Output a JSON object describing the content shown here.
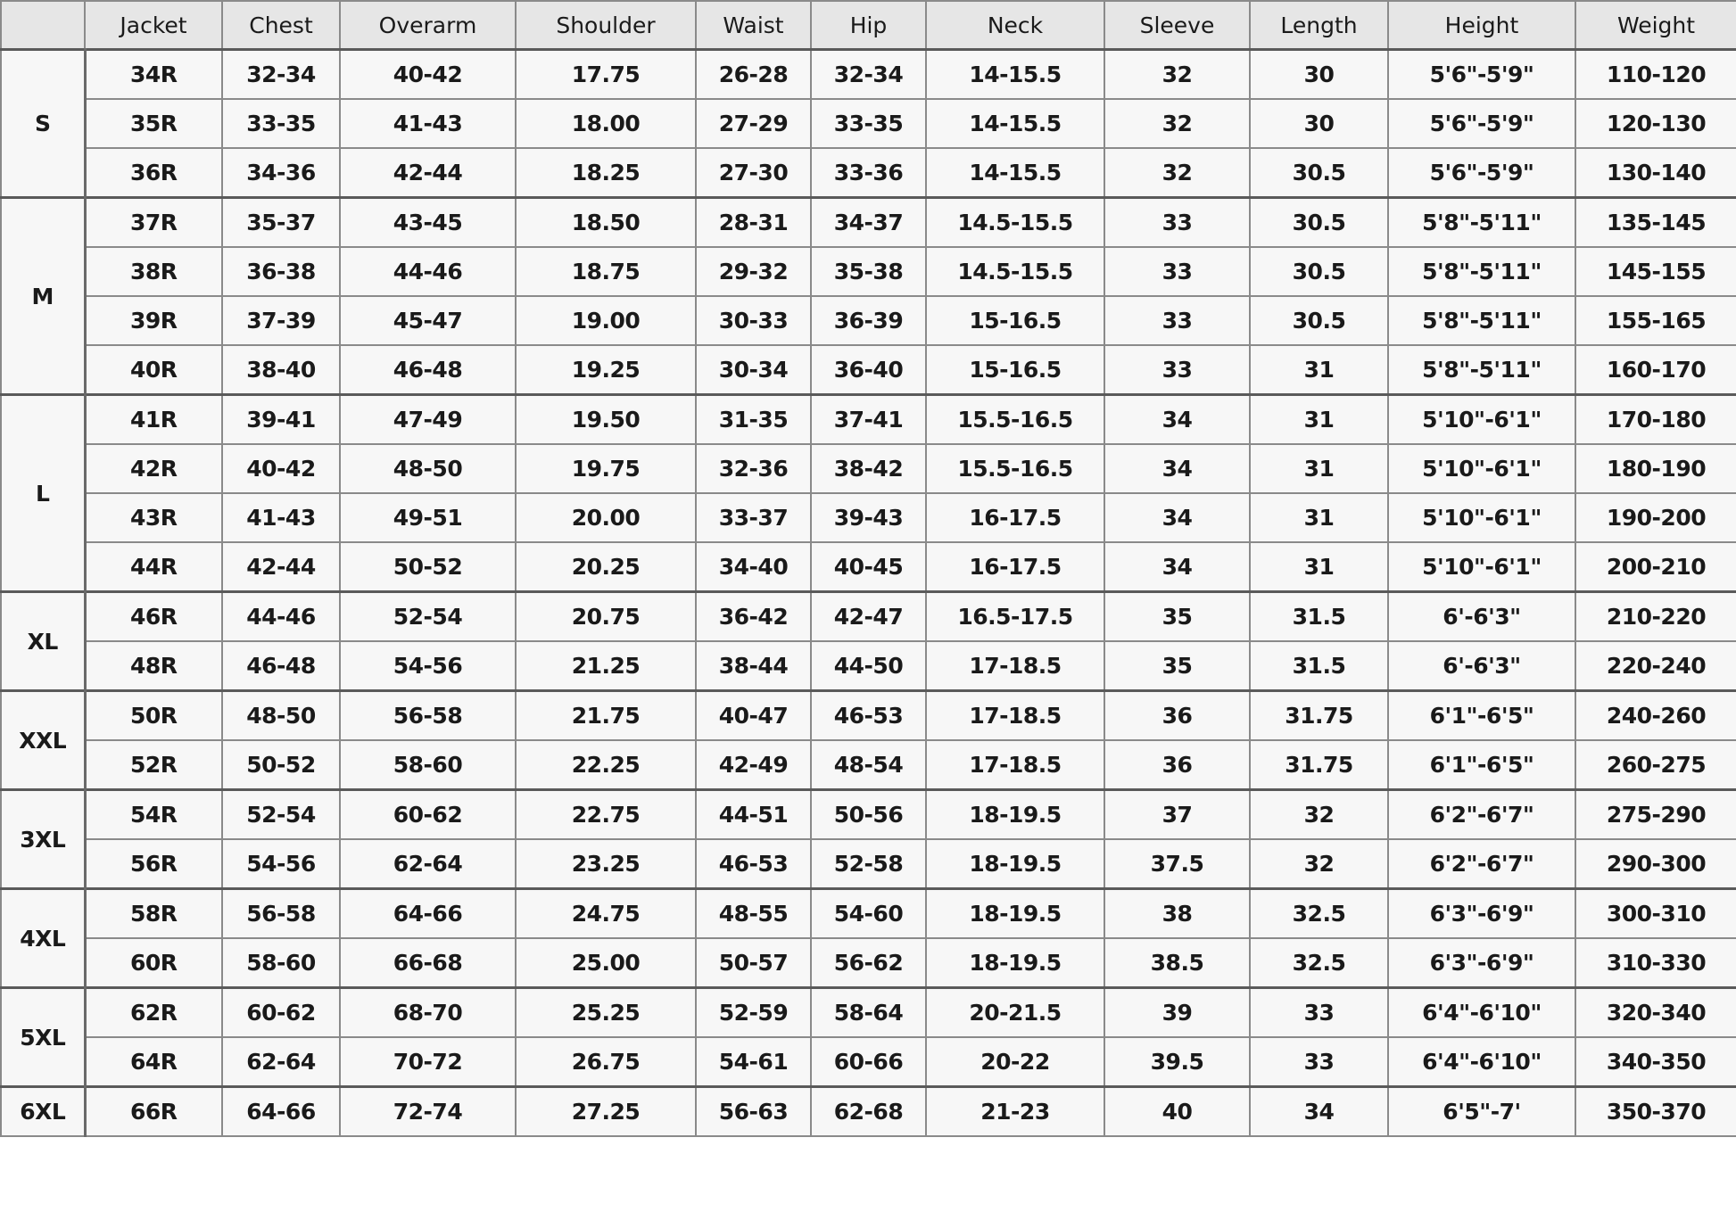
{
  "table": {
    "header": [
      "Jacket",
      "Chest",
      "Overarm",
      "Shoulder",
      "Waist",
      "Hip",
      "Neck",
      "Sleeve",
      "Length",
      "Height",
      "Weight"
    ],
    "groups": [
      {
        "size": "S",
        "rows": [
          [
            "34R",
            "32-34",
            "40-42",
            "17.75",
            "26-28",
            "32-34",
            "14-15.5",
            "32",
            "30",
            "5'6\"-5'9\"",
            "110-120"
          ],
          [
            "35R",
            "33-35",
            "41-43",
            "18.00",
            "27-29",
            "33-35",
            "14-15.5",
            "32",
            "30",
            "5'6\"-5'9\"",
            "120-130"
          ],
          [
            "36R",
            "34-36",
            "42-44",
            "18.25",
            "27-30",
            "33-36",
            "14-15.5",
            "32",
            "30.5",
            "5'6\"-5'9\"",
            "130-140"
          ]
        ]
      },
      {
        "size": "M",
        "rows": [
          [
            "37R",
            "35-37",
            "43-45",
            "18.50",
            "28-31",
            "34-37",
            "14.5-15.5",
            "33",
            "30.5",
            "5'8\"-5'11\"",
            "135-145"
          ],
          [
            "38R",
            "36-38",
            "44-46",
            "18.75",
            "29-32",
            "35-38",
            "14.5-15.5",
            "33",
            "30.5",
            "5'8\"-5'11\"",
            "145-155"
          ],
          [
            "39R",
            "37-39",
            "45-47",
            "19.00",
            "30-33",
            "36-39",
            "15-16.5",
            "33",
            "30.5",
            "5'8\"-5'11\"",
            "155-165"
          ],
          [
            "40R",
            "38-40",
            "46-48",
            "19.25",
            "30-34",
            "36-40",
            "15-16.5",
            "33",
            "31",
            "5'8\"-5'11\"",
            "160-170"
          ]
        ]
      },
      {
        "size": "L",
        "rows": [
          [
            "41R",
            "39-41",
            "47-49",
            "19.50",
            "31-35",
            "37-41",
            "15.5-16.5",
            "34",
            "31",
            "5'10\"-6'1\"",
            "170-180"
          ],
          [
            "42R",
            "40-42",
            "48-50",
            "19.75",
            "32-36",
            "38-42",
            "15.5-16.5",
            "34",
            "31",
            "5'10\"-6'1\"",
            "180-190"
          ],
          [
            "43R",
            "41-43",
            "49-51",
            "20.00",
            "33-37",
            "39-43",
            "16-17.5",
            "34",
            "31",
            "5'10\"-6'1\"",
            "190-200"
          ],
          [
            "44R",
            "42-44",
            "50-52",
            "20.25",
            "34-40",
            "40-45",
            "16-17.5",
            "34",
            "31",
            "5'10\"-6'1\"",
            "200-210"
          ]
        ]
      },
      {
        "size": "XL",
        "rows": [
          [
            "46R",
            "44-46",
            "52-54",
            "20.75",
            "36-42",
            "42-47",
            "16.5-17.5",
            "35",
            "31.5",
            "6'-6'3\"",
            "210-220"
          ],
          [
            "48R",
            "46-48",
            "54-56",
            "21.25",
            "38-44",
            "44-50",
            "17-18.5",
            "35",
            "31.5",
            "6'-6'3\"",
            "220-240"
          ]
        ]
      },
      {
        "size": "XXL",
        "rows": [
          [
            "50R",
            "48-50",
            "56-58",
            "21.75",
            "40-47",
            "46-53",
            "17-18.5",
            "36",
            "31.75",
            "6'1\"-6'5\"",
            "240-260"
          ],
          [
            "52R",
            "50-52",
            "58-60",
            "22.25",
            "42-49",
            "48-54",
            "17-18.5",
            "36",
            "31.75",
            "6'1\"-6'5\"",
            "260-275"
          ]
        ]
      },
      {
        "size": "3XL",
        "rows": [
          [
            "54R",
            "52-54",
            "60-62",
            "22.75",
            "44-51",
            "50-56",
            "18-19.5",
            "37",
            "32",
            "6'2\"-6'7\"",
            "275-290"
          ],
          [
            "56R",
            "54-56",
            "62-64",
            "23.25",
            "46-53",
            "52-58",
            "18-19.5",
            "37.5",
            "32",
            "6'2\"-6'7\"",
            "290-300"
          ]
        ]
      },
      {
        "size": "4XL",
        "rows": [
          [
            "58R",
            "56-58",
            "64-66",
            "24.75",
            "48-55",
            "54-60",
            "18-19.5",
            "38",
            "32.5",
            "6'3\"-6'9\"",
            "300-310"
          ],
          [
            "60R",
            "58-60",
            "66-68",
            "25.00",
            "50-57",
            "56-62",
            "18-19.5",
            "38.5",
            "32.5",
            "6'3\"-6'9\"",
            "310-330"
          ]
        ]
      },
      {
        "size": "5XL",
        "rows": [
          [
            "62R",
            "60-62",
            "68-70",
            "25.25",
            "52-59",
            "58-64",
            "20-21.5",
            "39",
            "33",
            "6'4\"-6'10\"",
            "320-340"
          ],
          [
            "64R",
            "62-64",
            "70-72",
            "26.75",
            "54-61",
            "60-66",
            "20-22",
            "39.5",
            "33",
            "6'4\"-6'10\"",
            "340-350"
          ]
        ]
      },
      {
        "size": "6XL",
        "rows": [
          [
            "66R",
            "64-66",
            "72-74",
            "27.25",
            "56-63",
            "62-68",
            "21-23",
            "40",
            "34",
            "6'5\"-7'",
            "350-370"
          ]
        ]
      }
    ]
  }
}
